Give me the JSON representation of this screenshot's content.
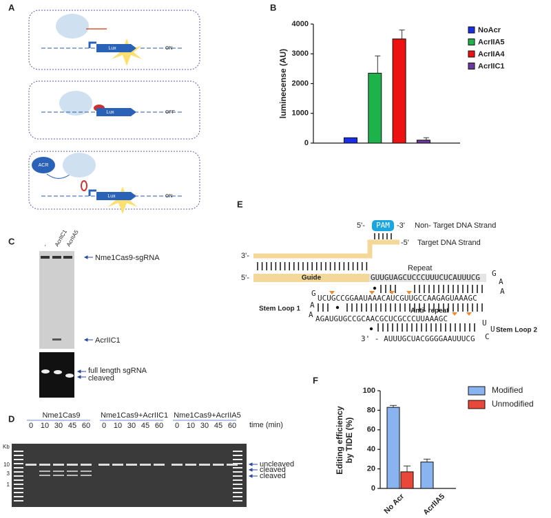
{
  "panel_labels": [
    "A",
    "B",
    "C",
    "D",
    "E",
    "F"
  ],
  "panel_a": {
    "diagrams": [
      {
        "gene": "Lux",
        "state": "ON"
      },
      {
        "gene": "Lux",
        "state": "OFF"
      },
      {
        "inhibitor": "ACR",
        "gene": "Lux",
        "state": "ON"
      }
    ]
  },
  "chart_data": [
    {
      "type": "bar",
      "ylabel": "luminecense (AU)",
      "categories": [
        "NoAcr",
        "AcrIIA5",
        "AcrIIA4",
        "AcrIIC1"
      ],
      "colors": [
        "#1a2ee8",
        "#1db34a",
        "#ee1111",
        "#6a3a9a"
      ],
      "values": [
        180,
        2350,
        3500,
        100
      ],
      "errors": [
        null,
        580,
        300,
        80
      ],
      "ylim": [
        0,
        4000
      ],
      "yticks": [
        0,
        1000,
        2000,
        3000,
        4000
      ]
    },
    {
      "type": "grouped_bar",
      "ylabel": [
        "Editing efficiency",
        "by TIDE (%)"
      ],
      "categories": [
        "No Acr",
        "AcrIIA5"
      ],
      "series": [
        {
          "name": "Modified",
          "color": "#8ab4f0",
          "values": [
            83,
            27
          ],
          "errors": [
            2,
            3
          ]
        },
        {
          "name": "Unmodified",
          "color": "#e8473a",
          "values": [
            17,
            null
          ],
          "errors": [
            6,
            null
          ]
        }
      ],
      "ylim": [
        0,
        100
      ],
      "yticks": [
        0,
        20,
        40,
        60,
        80,
        100
      ]
    }
  ],
  "panel_c": {
    "lanes": [
      "-",
      "AcrIIC1",
      "AcrIIA5"
    ],
    "annotations": [
      "Nme1Cas9-sgRNA",
      "AcrIIC1",
      "full length sgRNA",
      "cleaved"
    ]
  },
  "panel_d": {
    "groups": [
      {
        "name": "Nme1Cas9",
        "times": [
          0,
          10,
          30,
          45,
          60
        ]
      },
      {
        "name": "Nme1Cas9+AcrIIC1",
        "times": [
          0,
          10,
          30,
          45,
          60
        ]
      },
      {
        "name": "Nme1Cas9+AcrIIA5",
        "times": [
          0,
          10,
          30,
          45,
          60
        ]
      }
    ],
    "time_label": "time (min)",
    "ladder_unit": "Kb",
    "ladder_ticks": [
      10,
      3,
      1
    ],
    "annotations": [
      "uncleaved",
      "cleaved",
      "cleaved"
    ]
  },
  "panel_e": {
    "texts": [
      "5'-",
      "PAM",
      "-3'",
      "Non- Target DNA Strand",
      "-5'",
      "Target DNA Strand",
      "3'-",
      "5'-",
      "Guide",
      "GUUGUAGCUCCCUUUCUCAUUUCG",
      "Repeat",
      "G",
      "A",
      "A",
      "G",
      "UCUGCCGGAAUAAACAUCGUUGCCAAGAGUAAAGC",
      "Stem Loop 1",
      "Anti- repeat",
      "A",
      "A",
      "AGAUGUGCCGCAACGCUCGCCCUUAAAGC",
      "U",
      "U",
      "C",
      "Stem Loop 2",
      "3' - AUUUGCUACGGGGAAUUUCG"
    ]
  }
}
